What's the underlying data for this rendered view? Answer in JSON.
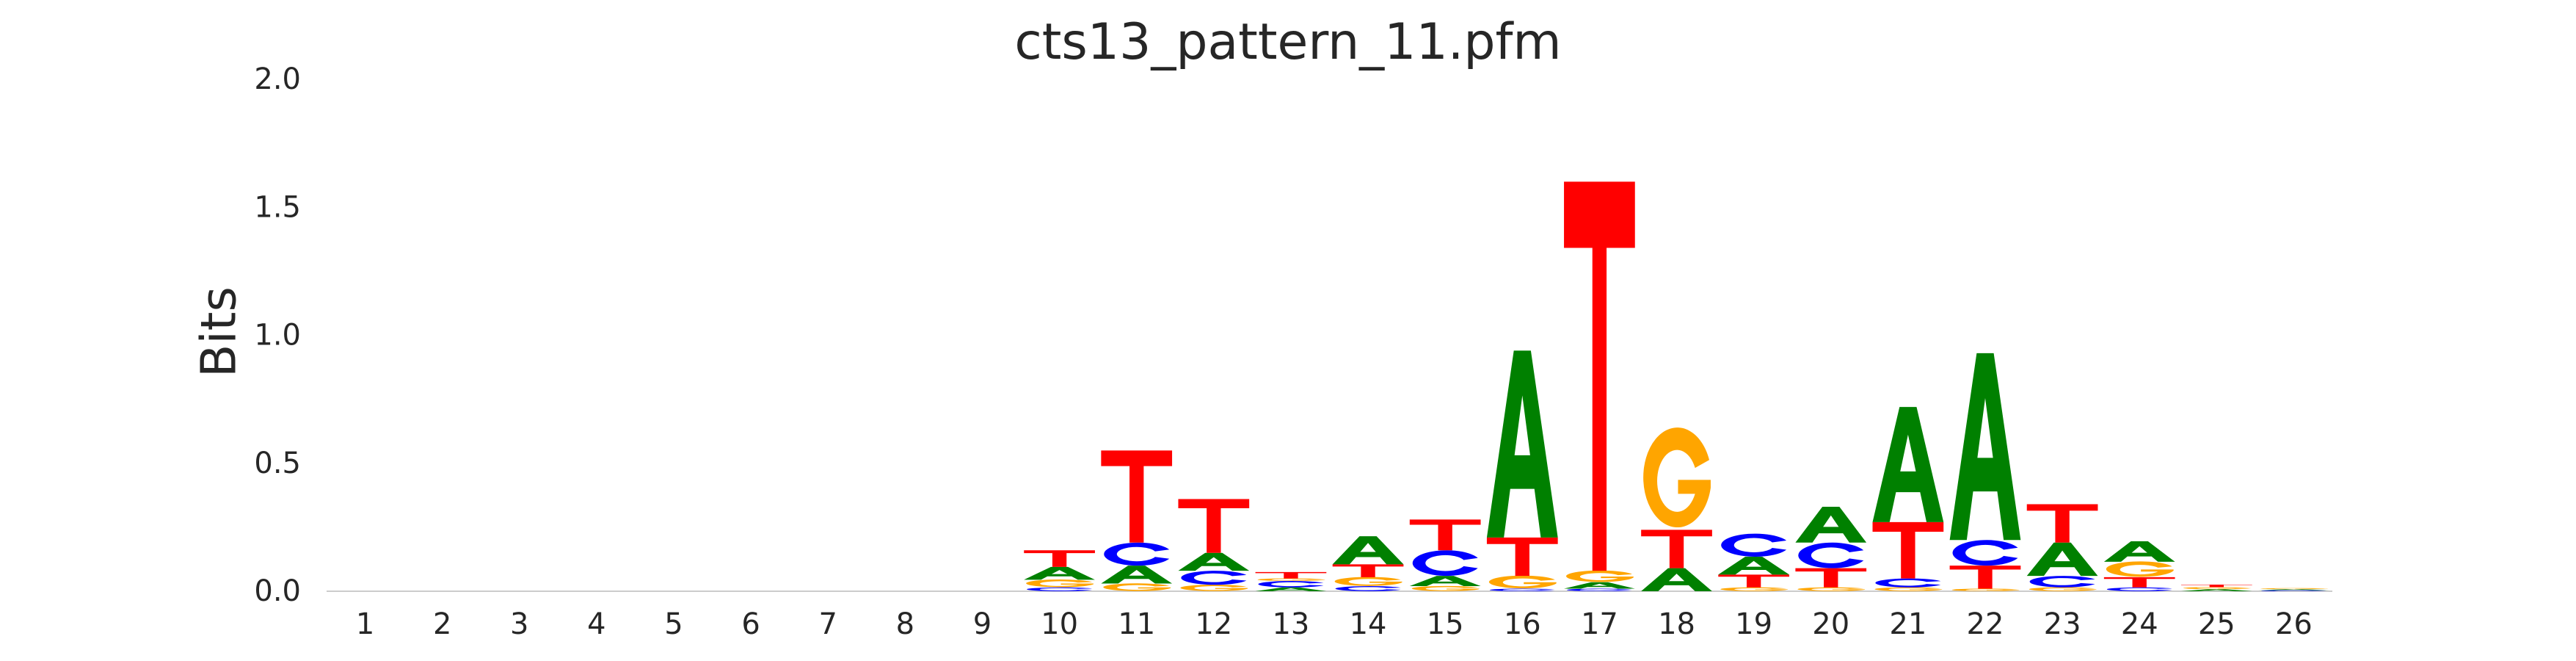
{
  "chart_data": {
    "type": "sequence_logo",
    "title": "cts13_pattern_11.pfm",
    "xlabel": "",
    "ylabel": "Bits",
    "ylim": [
      0,
      2.0
    ],
    "y_ticks": [
      "0.0",
      "0.5",
      "1.0",
      "1.5",
      "2.0"
    ],
    "grid": false,
    "letter_colors": {
      "A": "#008000",
      "C": "#0000ff",
      "G": "#ffa500",
      "T": "#ff0000"
    },
    "positions": [
      {
        "pos": "1",
        "stack": []
      },
      {
        "pos": "2",
        "stack": []
      },
      {
        "pos": "3",
        "stack": []
      },
      {
        "pos": "4",
        "stack": []
      },
      {
        "pos": "5",
        "stack": []
      },
      {
        "pos": "6",
        "stack": []
      },
      {
        "pos": "7",
        "stack": []
      },
      {
        "pos": "8",
        "stack": []
      },
      {
        "pos": "9",
        "stack": []
      },
      {
        "pos": "10",
        "stack": [
          [
            "C",
            0.015
          ],
          [
            "G",
            0.03
          ],
          [
            "A",
            0.05
          ],
          [
            "T",
            0.065
          ]
        ]
      },
      {
        "pos": "11",
        "stack": [
          [
            "G",
            0.03
          ],
          [
            "A",
            0.07
          ],
          [
            "C",
            0.09
          ],
          [
            "T",
            0.36
          ]
        ]
      },
      {
        "pos": "12",
        "stack": [
          [
            "G",
            0.025
          ],
          [
            "C",
            0.055
          ],
          [
            "A",
            0.07
          ],
          [
            "T",
            0.21
          ]
        ]
      },
      {
        "pos": "13",
        "stack": [
          [
            "A",
            0.015
          ],
          [
            "C",
            0.025
          ],
          [
            "G",
            0.01
          ],
          [
            "T",
            0.025
          ]
        ]
      },
      {
        "pos": "14",
        "stack": [
          [
            "C",
            0.02
          ],
          [
            "G",
            0.035
          ],
          [
            "T",
            0.05
          ],
          [
            "A",
            0.11
          ]
        ]
      },
      {
        "pos": "15",
        "stack": [
          [
            "G",
            0.02
          ],
          [
            "A",
            0.04
          ],
          [
            "C",
            0.1
          ],
          [
            "T",
            0.12
          ]
        ]
      },
      {
        "pos": "16",
        "stack": [
          [
            "C",
            0.01
          ],
          [
            "G",
            0.05
          ],
          [
            "T",
            0.15
          ],
          [
            "A",
            0.73
          ]
        ]
      },
      {
        "pos": "17",
        "stack": [
          [
            "C",
            0.01
          ],
          [
            "A",
            0.025
          ],
          [
            "G",
            0.045
          ],
          [
            "T",
            1.52
          ]
        ]
      },
      {
        "pos": "18",
        "stack": [
          [
            "A",
            0.09
          ],
          [
            "T",
            0.15
          ],
          [
            "G",
            0.39
          ]
        ]
      },
      {
        "pos": "19",
        "stack": [
          [
            "G",
            0.015
          ],
          [
            "T",
            0.05
          ],
          [
            "A",
            0.07
          ],
          [
            "C",
            0.09
          ]
        ]
      },
      {
        "pos": "20",
        "stack": [
          [
            "G",
            0.015
          ],
          [
            "T",
            0.075
          ],
          [
            "C",
            0.1
          ],
          [
            "A",
            0.14
          ]
        ]
      },
      {
        "pos": "21",
        "stack": [
          [
            "G",
            0.015
          ],
          [
            "C",
            0.035
          ],
          [
            "T",
            0.22
          ],
          [
            "A",
            0.45
          ]
        ]
      },
      {
        "pos": "22",
        "stack": [
          [
            "G",
            0.01
          ],
          [
            "T",
            0.09
          ],
          [
            "C",
            0.1
          ],
          [
            "A",
            0.73
          ]
        ]
      },
      {
        "pos": "23",
        "stack": [
          [
            "G",
            0.015
          ],
          [
            "C",
            0.045
          ],
          [
            "A",
            0.13
          ],
          [
            "T",
            0.15
          ]
        ]
      },
      {
        "pos": "24",
        "stack": [
          [
            "C",
            0.015
          ],
          [
            "T",
            0.04
          ],
          [
            "G",
            0.06
          ],
          [
            "A",
            0.08
          ]
        ]
      },
      {
        "pos": "25",
        "stack": [
          [
            "A",
            0.008
          ],
          [
            "G",
            0.008
          ],
          [
            "T",
            0.01
          ]
        ]
      },
      {
        "pos": "26",
        "stack": [
          [
            "C",
            0.004
          ],
          [
            "A",
            0.004
          ],
          [
            "G",
            0.004
          ]
        ]
      }
    ]
  }
}
